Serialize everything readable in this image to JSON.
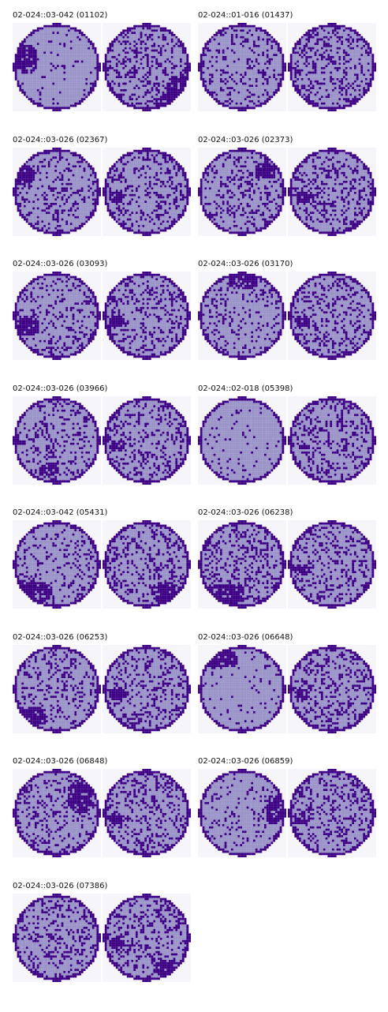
{
  "colors": {
    "wafer_fill": "#9b94c8",
    "defect": "#3d0084",
    "edge": "#3d0084",
    "background": "#f6f6fa"
  },
  "panels": [
    {
      "title": "02-024::03-042 (01102)",
      "left": "map",
      "right": "map"
    },
    {
      "title": "02-024::01-016 (01437)",
      "left": "map",
      "right": "map"
    },
    {
      "title": "02-024::03-026 (02367)",
      "left": "map",
      "right": "map"
    },
    {
      "title": "02-024::03-026 (02373)",
      "left": "map",
      "right": "map"
    },
    {
      "title": "02-024::03-026 (03093)",
      "left": "map",
      "right": "map"
    },
    {
      "title": "02-024::03-026 (03170)",
      "left": "map",
      "right": "map"
    },
    {
      "title": "02-024::03-026 (03966)",
      "left": "map",
      "right": "map"
    },
    {
      "title": "02-024::02-018 (05398)",
      "left": "map",
      "right": "map"
    },
    {
      "title": "02-024::03-042 (05431)",
      "left": "map",
      "right": "map"
    },
    {
      "title": "02-024::03-026 (06238)",
      "left": "map",
      "right": "map"
    },
    {
      "title": "02-024::03-026 (06253)",
      "left": "map",
      "right": "map"
    },
    {
      "title": "02-024::03-026 (06648)",
      "left": "map",
      "right": "map"
    },
    {
      "title": "02-024::03-026 (06848)",
      "left": "map",
      "right": "map"
    },
    {
      "title": "02-024::03-026 (06859)",
      "left": "map",
      "right": "map"
    },
    {
      "title": "02-024::03-026 (07386)",
      "left": "map",
      "right": "map"
    }
  ]
}
